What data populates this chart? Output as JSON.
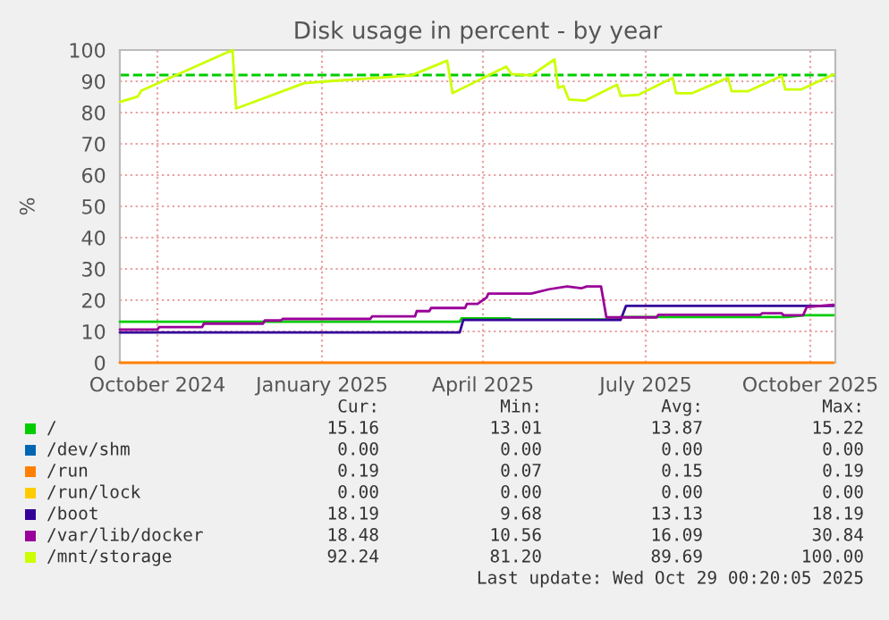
{
  "chart_data": {
    "type": "line",
    "title": "Disk usage in percent - by year",
    "ylabel": "%",
    "xlim": [
      "2024-09-10",
      "2025-10-15"
    ],
    "xticks": [
      {
        "value": "2024-10-01",
        "label": "October 2024"
      },
      {
        "value": "2025-01-01",
        "label": "January 2025"
      },
      {
        "value": "2025-04-01",
        "label": "April 2025"
      },
      {
        "value": "2025-07-01",
        "label": "July 2025"
      },
      {
        "value": "2025-10-01",
        "label": "October 2025"
      }
    ],
    "ylim": [
      0,
      100
    ],
    "yticks": [
      0,
      10,
      20,
      30,
      40,
      50,
      60,
      70,
      80,
      90,
      100
    ],
    "grid": true,
    "legend": "bottom",
    "line_style": "solid",
    "marker": "none",
    "ref_lines": [
      {
        "axis": "y",
        "value": 92,
        "color": "#00cc00",
        "line_style": "dashed"
      }
    ],
    "series": [
      {
        "name": "/",
        "color": "#00cc00",
        "x": [
          "2024-09-10",
          "2025-03-19",
          "2025-03-20",
          "2025-04-16",
          "2025-04-17",
          "2025-06-15",
          "2025-06-17",
          "2025-09-18",
          "2025-09-28",
          "2025-10-14"
        ],
        "values": [
          13.1,
          13.1,
          14.2,
          14.2,
          13.8,
          13.8,
          14.6,
          14.6,
          15.2,
          15.2
        ]
      },
      {
        "name": "/dev/shm",
        "color": "#0066b3",
        "values": [
          null
        ]
      },
      {
        "name": "/run",
        "color": "#ff8000",
        "x": [
          "2024-09-10",
          "2025-10-14"
        ],
        "values": [
          0,
          0
        ]
      },
      {
        "name": "/run/lock",
        "color": "#ffcc00",
        "values": [
          null
        ]
      },
      {
        "name": "/boot",
        "color": "#330099",
        "x": [
          "2024-09-10",
          "2025-03-19",
          "2025-03-21",
          "2025-06-17",
          "2025-06-20",
          "2025-10-14"
        ],
        "values": [
          9.7,
          9.7,
          13.7,
          13.7,
          18.2,
          18.2
        ]
      },
      {
        "name": "/var/lib/docker",
        "color": "#990099",
        "x": [
          "2024-09-10",
          "2024-10-01",
          "2024-10-02",
          "2024-10-26",
          "2024-10-27",
          "2024-11-29",
          "2024-11-30",
          "2024-12-09",
          "2024-12-10",
          "2025-01-28",
          "2025-01-29",
          "2025-02-22",
          "2025-02-23",
          "2025-03-02",
          "2025-03-03",
          "2025-03-22",
          "2025-03-23",
          "2025-03-29",
          "2025-04-03",
          "2025-04-04",
          "2025-04-28",
          "2025-05-08",
          "2025-05-18",
          "2025-05-26",
          "2025-05-29",
          "2025-06-06",
          "2025-06-09",
          "2025-07-07",
          "2025-07-08",
          "2025-09-03",
          "2025-09-04",
          "2025-09-15",
          "2025-09-16",
          "2025-09-27",
          "2025-09-29",
          "2025-10-14"
        ],
        "values": [
          10.6,
          10.6,
          11.4,
          11.4,
          12.5,
          12.5,
          13.5,
          13.5,
          14.0,
          14.0,
          14.8,
          14.8,
          16.5,
          16.5,
          17.5,
          17.5,
          18.8,
          18.8,
          20.8,
          22.1,
          22.1,
          23.5,
          24.4,
          23.8,
          24.4,
          24.4,
          14.5,
          14.5,
          15.3,
          15.3,
          15.8,
          15.8,
          15.2,
          15.2,
          17.8,
          18.5
        ]
      },
      {
        "name": "/mnt/storage",
        "color": "#ccff00",
        "x": [
          "2024-09-10",
          "2024-09-20",
          "2024-09-22",
          "2024-11-12",
          "2024-11-14",
          "2024-12-22",
          "2025-01-04",
          "2025-02-20",
          "2025-03-12",
          "2025-03-15",
          "2025-04-14",
          "2025-04-17",
          "2025-04-28",
          "2025-05-11",
          "2025-05-13",
          "2025-05-16",
          "2025-05-19",
          "2025-05-28",
          "2025-06-15",
          "2025-06-17",
          "2025-06-27",
          "2025-07-16",
          "2025-07-18",
          "2025-07-27",
          "2025-08-16",
          "2025-08-18",
          "2025-08-27",
          "2025-09-15",
          "2025-09-17",
          "2025-09-26",
          "2025-10-14"
        ],
        "values": [
          83.4,
          85.1,
          87,
          100,
          81.3,
          89.4,
          90,
          91.9,
          96.6,
          86.2,
          94.7,
          92.3,
          91.9,
          97,
          87.9,
          88.5,
          84.2,
          83.8,
          88.9,
          85.3,
          85.7,
          91.1,
          86.2,
          86.2,
          91.1,
          86.8,
          86.8,
          91.7,
          87.4,
          87.4,
          92.2
        ]
      }
    ],
    "annotations": [
      "Cur:",
      "Min:",
      "Avg:",
      "Max:",
      "15.16",
      "13.01",
      "13.87",
      "15.22",
      "0.00",
      "0.00",
      "0.00",
      "0.00",
      "0.19",
      "0.07",
      "0.15",
      "0.19",
      "0.00",
      "0.00",
      "0.00",
      "0.00",
      "18.19",
      "9.68",
      "13.13",
      "18.19",
      "18.48",
      "10.56",
      "16.09",
      "30.84",
      "92.24",
      "81.20",
      "89.69",
      "100.00",
      "Last update: Wed Oct 29 00:20:05 2025"
    ]
  }
}
